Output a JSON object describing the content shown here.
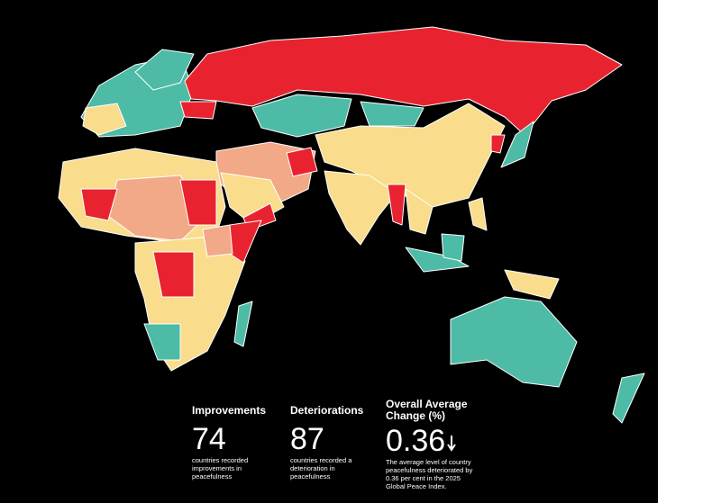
{
  "stats": [
    {
      "title": "Improvements",
      "value": 74,
      "description": "countries recorded improvements in peacefulness"
    },
    {
      "title": "Deteriorations",
      "value": 87,
      "description": "countries recorded a deterioration in peacefulness"
    },
    {
      "title": "Overall Average Change (%)",
      "value": 0.36,
      "description": "The average level of country peacefulness deteriorated by 0.36 per cent in the 2025 Global Peace Index."
    }
  ]
}
